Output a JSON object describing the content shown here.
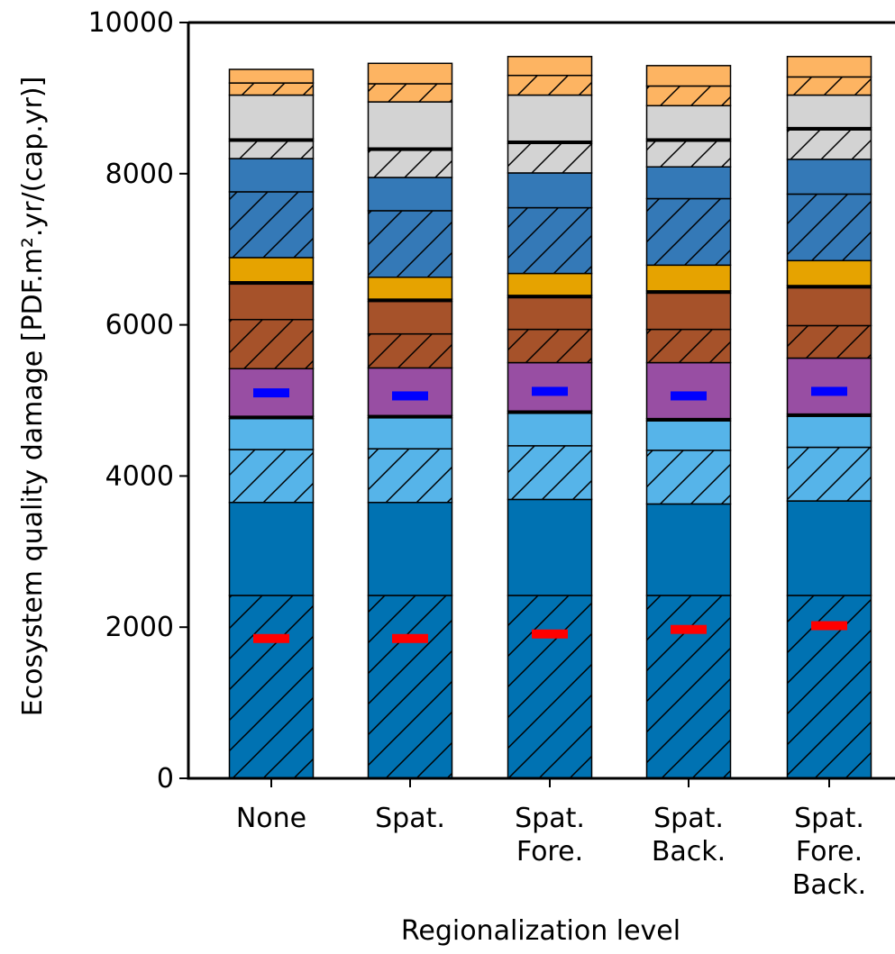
{
  "chart_data": {
    "type": "bar",
    "stacked": true,
    "xlabel": "Regionalization level",
    "ylabel": "Ecosystem quality damage [PDF.m².yr/(cap.yr)]",
    "ylim": [
      0,
      10000
    ],
    "yticks": [
      0,
      2000,
      4000,
      6000,
      8000,
      10000
    ],
    "grid": false,
    "legend": "none",
    "categories": [
      [
        "None"
      ],
      [
        "Spat."
      ],
      [
        "Spat.",
        "Fore."
      ],
      [
        "Spat.",
        "Back."
      ],
      [
        "Spat.",
        "Fore.",
        "Back."
      ]
    ],
    "series": [
      {
        "color": "#0072b2",
        "hatch": true,
        "values": [
          2420,
          2420,
          2420,
          2420,
          2420
        ]
      },
      {
        "color": "#0072b2",
        "hatch": false,
        "values": [
          1230,
          1230,
          1270,
          1210,
          1250
        ]
      },
      {
        "color": "#56b4e9",
        "hatch": true,
        "values": [
          700,
          710,
          710,
          710,
          710
        ]
      },
      {
        "color": "#56b4e9",
        "hatch": false,
        "values": [
          410,
          410,
          430,
          390,
          410
        ]
      },
      {
        "color": "#000000",
        "hatch": false,
        "values": [
          30,
          30,
          30,
          30,
          30
        ]
      },
      {
        "color": "#984ea3",
        "hatch": false,
        "values": [
          630,
          630,
          640,
          740,
          740
        ]
      },
      {
        "color": "#a6522a",
        "hatch": true,
        "values": [
          650,
          450,
          440,
          440,
          430
        ]
      },
      {
        "color": "#a6522a",
        "hatch": false,
        "values": [
          470,
          430,
          420,
          480,
          500
        ]
      },
      {
        "color": "#000000",
        "hatch": false,
        "values": [
          30,
          30,
          30,
          30,
          30
        ]
      },
      {
        "color": "#e6a300",
        "hatch": false,
        "values": [
          320,
          290,
          290,
          340,
          330
        ]
      },
      {
        "color": "#3479b7",
        "hatch": true,
        "values": [
          870,
          880,
          870,
          880,
          880
        ]
      },
      {
        "color": "#3479b7",
        "hatch": false,
        "values": [
          440,
          440,
          460,
          420,
          460
        ]
      },
      {
        "color": "#d3d3d3",
        "hatch": true,
        "values": [
          230,
          360,
          390,
          340,
          390
        ]
      },
      {
        "color": "#000000",
        "hatch": false,
        "values": [
          30,
          30,
          30,
          30,
          30
        ]
      },
      {
        "color": "#d3d3d3",
        "hatch": false,
        "values": [
          580,
          610,
          610,
          440,
          430
        ]
      },
      {
        "color": "#fdb462",
        "hatch": true,
        "values": [
          160,
          240,
          260,
          260,
          240
        ]
      },
      {
        "color": "#fdb462",
        "hatch": false,
        "values": [
          180,
          270,
          250,
          270,
          270
        ]
      }
    ],
    "markers": [
      {
        "color": "#ff0000",
        "values": [
          1850,
          1850,
          1910,
          1970,
          2020
        ]
      },
      {
        "color": "#0000ff",
        "values": [
          5100,
          5060,
          5120,
          5060,
          5120
        ]
      }
    ]
  }
}
